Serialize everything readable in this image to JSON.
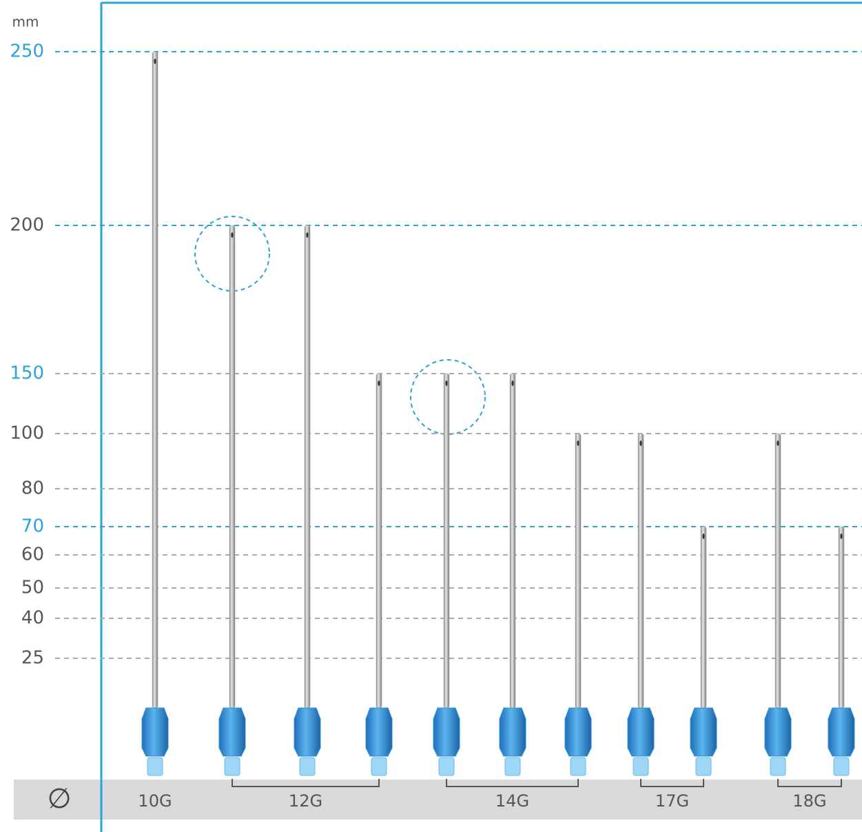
{
  "chart_data": {
    "type": "needle",
    "y_unit": "mm",
    "diameter_symbol": "∅",
    "ylim": [
      0,
      250
    ],
    "yticks": [
      250,
      200,
      150,
      100,
      80,
      70,
      60,
      50,
      40,
      25
    ],
    "ytick_label_colors": [
      "#2aa3d8",
      "#555555",
      "#2aa3d8",
      "#555555",
      "#555555",
      "#2aa3d8",
      "#555555",
      "#555555",
      "#555555",
      "#555555"
    ],
    "grid_colors": [
      "#2aa3d8",
      "#2aa3d8",
      "#aaaaaa",
      "#aaaaaa",
      "#aaaaaa",
      "#2aa3d8",
      "#aaaaaa",
      "#aaaaaa",
      "#aaaaaa",
      "#aaaaaa"
    ],
    "color": "#2f8fd6",
    "groups": [
      {
        "name": "10G",
        "values": [
          250
        ]
      },
      {
        "name": "12G",
        "values": [
          200,
          200,
          150
        ]
      },
      {
        "name": "14G",
        "values": [
          150,
          150,
          100
        ]
      },
      {
        "name": "17G",
        "values": [
          100,
          70
        ]
      },
      {
        "name": "18G",
        "values": [
          100,
          70
        ]
      }
    ]
  }
}
